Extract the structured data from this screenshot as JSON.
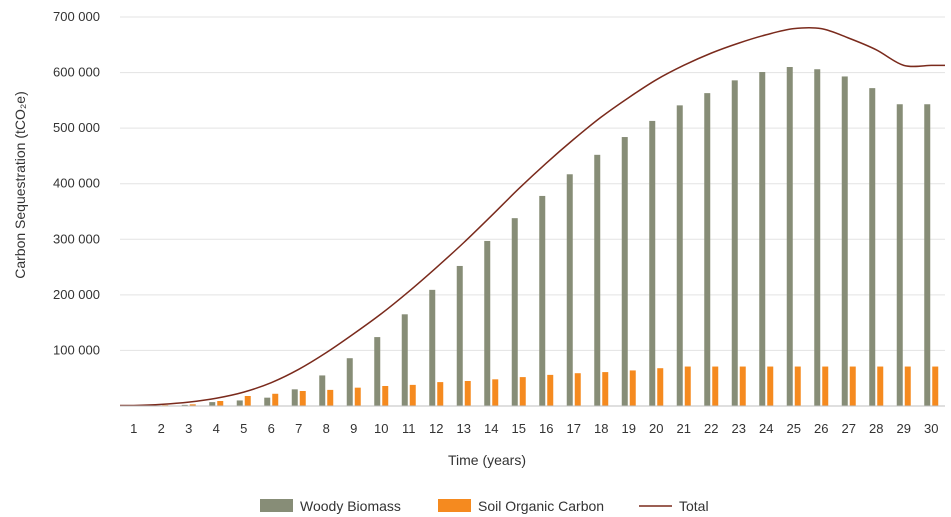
{
  "chart_data": {
    "type": "bar",
    "categories": [
      "1",
      "2",
      "3",
      "4",
      "5",
      "6",
      "7",
      "8",
      "9",
      "10",
      "11",
      "12",
      "13",
      "14",
      "15",
      "16",
      "17",
      "18",
      "19",
      "20",
      "21",
      "22",
      "23",
      "24",
      "25",
      "26",
      "27",
      "28",
      "29",
      "30"
    ],
    "series": [
      {
        "name": "Woody Biomass",
        "type": "bar",
        "color": "#878d77",
        "values": [
          500,
          1000,
          2000,
          7000,
          10000,
          15000,
          30000,
          55000,
          86000,
          124000,
          165000,
          209000,
          252000,
          297000,
          338000,
          378000,
          417000,
          452000,
          484000,
          513000,
          541000,
          563000,
          586000,
          601000,
          610000,
          606000,
          593000,
          572000,
          543000,
          543000
        ]
      },
      {
        "name": "Soil Organic Carbon",
        "type": "bar",
        "color": "#f58a1f",
        "values": [
          1000,
          1500,
          3000,
          9000,
          18000,
          22000,
          27000,
          29000,
          33000,
          36000,
          38000,
          43000,
          45000,
          48000,
          52000,
          56000,
          59000,
          61000,
          64000,
          68000,
          71000,
          71000,
          71000,
          71000,
          71000,
          71000,
          71000,
          71000,
          71000,
          71000
        ]
      },
      {
        "name": "Total",
        "type": "line",
        "color": "#7a2a1c",
        "values": [
          1000,
          3000,
          7000,
          14000,
          25000,
          42000,
          66000,
          96000,
          130000,
          166000,
          206000,
          249000,
          294000,
          342000,
          391000,
          437000,
          480000,
          520000,
          555000,
          587000,
          613000,
          635000,
          653000,
          668000,
          679000,
          679000,
          662000,
          641000,
          613000,
          613000
        ]
      }
    ],
    "xlabel": "Time (years)",
    "ylabel": "Carbon Sequestration (tCO₂e)",
    "ylim": [
      0,
      700000
    ],
    "yticks": [
      "",
      "100 000",
      "200 000",
      "300 000",
      "400 000",
      "500 000",
      "600 000",
      "700 000"
    ],
    "grid": true,
    "legend_position": "bottom"
  }
}
